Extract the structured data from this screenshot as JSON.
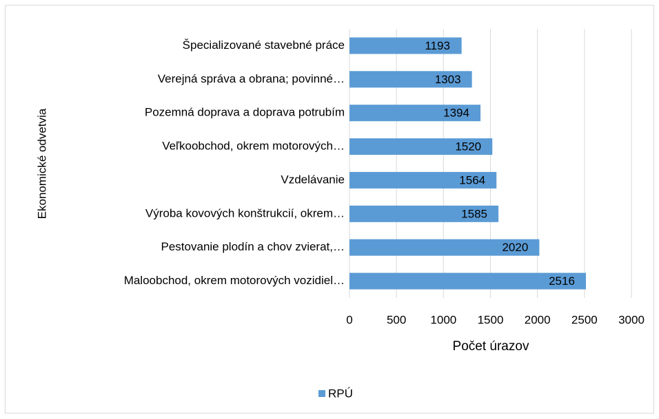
{
  "chart_data": {
    "type": "barh",
    "categories": [
      "Špecializované stavebné práce",
      "Verejná správa a obrana; povinné…",
      "Pozemná doprava a doprava potrubím",
      "Veľkoobchod, okrem motorových…",
      "Vzdelávanie",
      "Výroba kovových konštrukcií, okrem…",
      "Pestovanie plodín a chov zvierat,…",
      "Maloobchod, okrem motorových vozidiel…"
    ],
    "series": [
      {
        "name": "RPÚ",
        "color": "#5b9bd5",
        "values": [
          1193,
          1303,
          1394,
          1520,
          1564,
          1585,
          2020,
          2516
        ]
      }
    ],
    "xlim": [
      0,
      3000
    ],
    "xticks": [
      0,
      500,
      1000,
      1500,
      2000,
      2500,
      3000
    ],
    "xlabel": "Počet úrazov",
    "ylabel": "Ekonomické odvetvia",
    "grid": true,
    "legend": "bottom"
  }
}
